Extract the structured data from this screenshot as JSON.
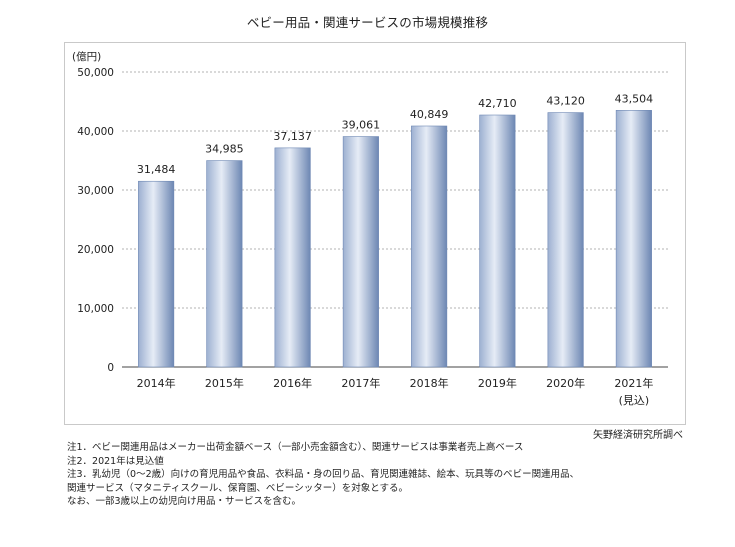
{
  "title": "ベビー用品・関連サービスの市場規模推移",
  "source": "矢野経済研究所調べ",
  "notes": [
    "注1．ベビー関連用品はメーカー出荷金額ベース（一部小売金額含む）、関連サービスは事業者売上高ベース",
    "注2．2021年は見込値",
    "注3．乳幼児（0～2歳）向けの育児用品や食品、衣料品・身の回り品、育児関連雑誌、絵本、玩具等のベビー関連用品、",
    "関連サービス（マタニティスクール、保育園、ベビーシッター）を対象とする。",
    "なお、一部3歳以上の幼児向け用品・サービスを含む。"
  ],
  "colors": {
    "bar_edge": "#6d87b3",
    "bar_light": "#e6ecf6",
    "bar_mid": "#9db0d1",
    "grid": "#9a9a9a",
    "axis": "#444444"
  },
  "chart_data": {
    "type": "bar",
    "unit_label": "(億円)",
    "categories": [
      "2014年",
      "2015年",
      "2016年",
      "2017年",
      "2018年",
      "2019年",
      "2020年",
      "2021年"
    ],
    "category_sublabels": [
      "",
      "",
      "",
      "",
      "",
      "",
      "",
      "(見込)"
    ],
    "values": [
      31484,
      34985,
      37137,
      39061,
      40849,
      42710,
      43120,
      43504
    ],
    "value_labels": [
      "31,484",
      "34,985",
      "37,137",
      "39,061",
      "40,849",
      "42,710",
      "43,120",
      "43,504"
    ],
    "yticks": [
      0,
      10000,
      20000,
      30000,
      40000,
      50000
    ],
    "ytick_labels": [
      "0",
      "10,000",
      "20,000",
      "30,000",
      "40,000",
      "50,000"
    ],
    "ylim": [
      0,
      50000
    ],
    "grid": "dashed horizontal",
    "legend": "none"
  }
}
